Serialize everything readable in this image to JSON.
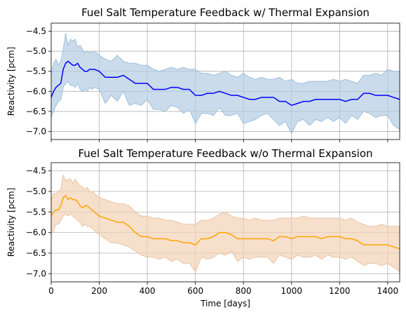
{
  "chart_data": [
    {
      "type": "line",
      "title": "Fuel Salt Temperature Feedback w/ Thermal Expansion",
      "xlabel": "",
      "ylabel": "Reactivity [pcm]",
      "xlim": [
        0,
        1450
      ],
      "ylim": [
        -7.2,
        -4.3
      ],
      "yticks": [
        -4.5,
        -5.0,
        -5.5,
        -6.0,
        -6.5,
        -7.0
      ],
      "ytick_labels": [
        "−4.5",
        "−5.0",
        "−5.5",
        "−6.0",
        "−6.5",
        "−7.0"
      ],
      "xticks": [
        0,
        200,
        400,
        600,
        800,
        1000,
        1200,
        1400
      ],
      "xtick_labels": [],
      "grid": true,
      "colors": {
        "line": "#0000ff",
        "band": "#b3cde3",
        "band_edge": "#9fbfdc"
      },
      "x": [
        0,
        10,
        20,
        30,
        40,
        50,
        60,
        70,
        80,
        90,
        100,
        110,
        120,
        130,
        140,
        150,
        160,
        170,
        180,
        200,
        225,
        250,
        275,
        300,
        325,
        350,
        375,
        400,
        425,
        450,
        475,
        500,
        525,
        550,
        575,
        600,
        625,
        650,
        675,
        700,
        725,
        750,
        775,
        800,
        825,
        850,
        875,
        900,
        925,
        950,
        975,
        1000,
        1025,
        1050,
        1075,
        1100,
        1125,
        1150,
        1175,
        1200,
        1225,
        1250,
        1275,
        1300,
        1325,
        1350,
        1375,
        1400,
        1425,
        1450
      ],
      "y": [
        -6.15,
        -6.0,
        -5.9,
        -5.85,
        -5.8,
        -5.45,
        -5.3,
        -5.25,
        -5.3,
        -5.35,
        -5.35,
        -5.3,
        -5.4,
        -5.45,
        -5.5,
        -5.5,
        -5.45,
        -5.45,
        -5.45,
        -5.5,
        -5.65,
        -5.65,
        -5.65,
        -5.6,
        -5.7,
        -5.8,
        -5.8,
        -5.8,
        -5.95,
        -5.95,
        -5.95,
        -5.9,
        -5.9,
        -5.95,
        -5.95,
        -6.1,
        -6.1,
        -6.05,
        -6.05,
        -6.0,
        -6.05,
        -6.1,
        -6.1,
        -6.15,
        -6.2,
        -6.2,
        -6.15,
        -6.15,
        -6.15,
        -6.25,
        -6.25,
        -6.35,
        -6.3,
        -6.25,
        -6.25,
        -6.2,
        -6.2,
        -6.2,
        -6.2,
        -6.2,
        -6.25,
        -6.2,
        -6.2,
        -6.05,
        -6.05,
        -6.1,
        -6.1,
        -6.1,
        -6.15,
        -6.2
      ],
      "lower": [
        -6.65,
        -6.5,
        -6.35,
        -6.25,
        -6.2,
        -5.9,
        -5.8,
        -5.75,
        -5.85,
        -5.85,
        -5.9,
        -5.8,
        -5.95,
        -6.0,
        -5.95,
        -6.0,
        -5.9,
        -5.95,
        -5.9,
        -5.95,
        -6.3,
        -6.1,
        -6.25,
        -6.0,
        -6.35,
        -6.3,
        -6.35,
        -6.2,
        -6.45,
        -6.45,
        -6.5,
        -6.35,
        -6.4,
        -6.55,
        -6.45,
        -6.8,
        -6.55,
        -6.55,
        -6.6,
        -6.4,
        -6.6,
        -6.6,
        -6.55,
        -6.8,
        -6.75,
        -6.7,
        -6.6,
        -6.55,
        -6.7,
        -6.85,
        -6.75,
        -7.05,
        -6.75,
        -6.7,
        -6.85,
        -6.7,
        -6.75,
        -6.65,
        -6.75,
        -6.65,
        -6.8,
        -6.6,
        -6.7,
        -6.5,
        -6.55,
        -6.65,
        -6.6,
        -6.6,
        -6.85,
        -6.95
      ],
      "upper": [
        -5.6,
        -5.3,
        -5.2,
        -5.35,
        -5.25,
        -4.95,
        -4.55,
        -4.85,
        -4.7,
        -4.75,
        -4.7,
        -4.9,
        -4.85,
        -4.95,
        -5.05,
        -5.0,
        -5.05,
        -5.0,
        -5.0,
        -5.1,
        -5.2,
        -5.25,
        -5.1,
        -5.25,
        -5.3,
        -5.3,
        -5.35,
        -5.35,
        -5.45,
        -5.5,
        -5.45,
        -5.4,
        -5.45,
        -5.4,
        -5.45,
        -5.45,
        -5.55,
        -5.55,
        -5.6,
        -5.55,
        -5.5,
        -5.6,
        -5.65,
        -5.55,
        -5.65,
        -5.7,
        -5.65,
        -5.7,
        -5.7,
        -5.65,
        -5.75,
        -5.7,
        -5.8,
        -5.8,
        -5.75,
        -5.75,
        -5.75,
        -5.75,
        -5.7,
        -5.75,
        -5.7,
        -5.75,
        -5.8,
        -5.6,
        -5.6,
        -5.55,
        -5.6,
        -5.45,
        -5.5,
        -5.5
      ]
    },
    {
      "type": "line",
      "title": "Fuel Salt Temperature Feedback w/o Thermal Expansion",
      "xlabel": "Time [days]",
      "ylabel": "Reactivity [pcm]",
      "xlim": [
        0,
        1450
      ],
      "ylim": [
        -7.2,
        -4.3
      ],
      "yticks": [
        -4.5,
        -5.0,
        -5.5,
        -6.0,
        -6.5,
        -7.0
      ],
      "ytick_labels": [
        "−4.5",
        "−5.0",
        "−5.5",
        "−6.0",
        "−6.5",
        "−7.0"
      ],
      "xticks": [
        0,
        200,
        400,
        600,
        800,
        1000,
        1200,
        1400
      ],
      "xtick_labels": [
        "0",
        "200",
        "400",
        "600",
        "800",
        "1000",
        "1200",
        "1400"
      ],
      "grid": true,
      "colors": {
        "line": "#ffa500",
        "band": "#f2d2b5",
        "band_edge": "#e9c4a2"
      },
      "x": [
        0,
        10,
        20,
        30,
        40,
        50,
        60,
        70,
        80,
        90,
        100,
        110,
        120,
        130,
        140,
        150,
        160,
        170,
        180,
        200,
        225,
        250,
        275,
        300,
        325,
        350,
        375,
        400,
        425,
        450,
        475,
        500,
        525,
        550,
        575,
        600,
        625,
        650,
        675,
        700,
        725,
        750,
        775,
        800,
        825,
        850,
        875,
        900,
        925,
        950,
        975,
        1000,
        1025,
        1050,
        1075,
        1100,
        1125,
        1150,
        1175,
        1200,
        1225,
        1250,
        1275,
        1300,
        1325,
        1350,
        1375,
        1400,
        1425,
        1450
      ],
      "y": [
        -5.6,
        -5.5,
        -5.45,
        -5.45,
        -5.35,
        -5.15,
        -5.1,
        -5.2,
        -5.15,
        -5.2,
        -5.2,
        -5.25,
        -5.35,
        -5.4,
        -5.35,
        -5.35,
        -5.4,
        -5.45,
        -5.5,
        -5.6,
        -5.65,
        -5.7,
        -5.75,
        -5.75,
        -5.85,
        -6.0,
        -6.1,
        -6.1,
        -6.15,
        -6.15,
        -6.15,
        -6.2,
        -6.2,
        -6.25,
        -6.25,
        -6.3,
        -6.15,
        -6.15,
        -6.1,
        -6.0,
        -6.0,
        -6.05,
        -6.15,
        -6.15,
        -6.15,
        -6.15,
        -6.15,
        -6.15,
        -6.2,
        -6.1,
        -6.1,
        -6.15,
        -6.1,
        -6.1,
        -6.1,
        -6.1,
        -6.15,
        -6.1,
        -6.1,
        -6.1,
        -6.15,
        -6.15,
        -6.2,
        -6.3,
        -6.3,
        -6.3,
        -6.3,
        -6.3,
        -6.35,
        -6.4
      ],
      "lower": [
        -6.05,
        -5.95,
        -5.8,
        -5.8,
        -5.7,
        -5.6,
        -5.55,
        -5.6,
        -5.55,
        -5.6,
        -5.65,
        -5.7,
        -5.75,
        -5.85,
        -5.8,
        -5.85,
        -5.85,
        -5.9,
        -5.95,
        -6.05,
        -6.15,
        -6.25,
        -6.25,
        -6.3,
        -6.35,
        -6.45,
        -6.55,
        -6.6,
        -6.6,
        -6.65,
        -6.6,
        -6.7,
        -6.65,
        -6.75,
        -6.75,
        -6.95,
        -6.6,
        -6.65,
        -6.6,
        -6.5,
        -6.55,
        -6.45,
        -6.7,
        -6.6,
        -6.65,
        -6.6,
        -6.6,
        -6.6,
        -6.75,
        -6.55,
        -6.6,
        -6.65,
        -6.55,
        -6.6,
        -6.6,
        -6.55,
        -6.65,
        -6.55,
        -6.6,
        -6.6,
        -6.65,
        -6.6,
        -6.7,
        -6.8,
        -6.75,
        -6.75,
        -6.8,
        -6.75,
        -6.85,
        -6.95
      ],
      "upper": [
        -5.2,
        -5.05,
        -5.05,
        -5.0,
        -4.95,
        -4.6,
        -4.75,
        -4.7,
        -4.7,
        -4.8,
        -4.7,
        -4.8,
        -4.85,
        -4.9,
        -4.95,
        -4.9,
        -5.0,
        -5.0,
        -5.05,
        -5.15,
        -5.2,
        -5.25,
        -5.3,
        -5.3,
        -5.35,
        -5.5,
        -5.6,
        -5.6,
        -5.65,
        -5.65,
        -5.7,
        -5.7,
        -5.75,
        -5.8,
        -5.8,
        -5.8,
        -5.7,
        -5.7,
        -5.65,
        -5.55,
        -5.5,
        -5.6,
        -5.65,
        -5.65,
        -5.7,
        -5.65,
        -5.7,
        -5.7,
        -5.7,
        -5.65,
        -5.65,
        -5.65,
        -5.65,
        -5.6,
        -5.65,
        -5.65,
        -5.65,
        -5.65,
        -5.65,
        -5.65,
        -5.7,
        -5.65,
        -5.75,
        -5.8,
        -5.85,
        -5.85,
        -5.8,
        -5.85,
        -5.85,
        -5.85
      ]
    }
  ]
}
